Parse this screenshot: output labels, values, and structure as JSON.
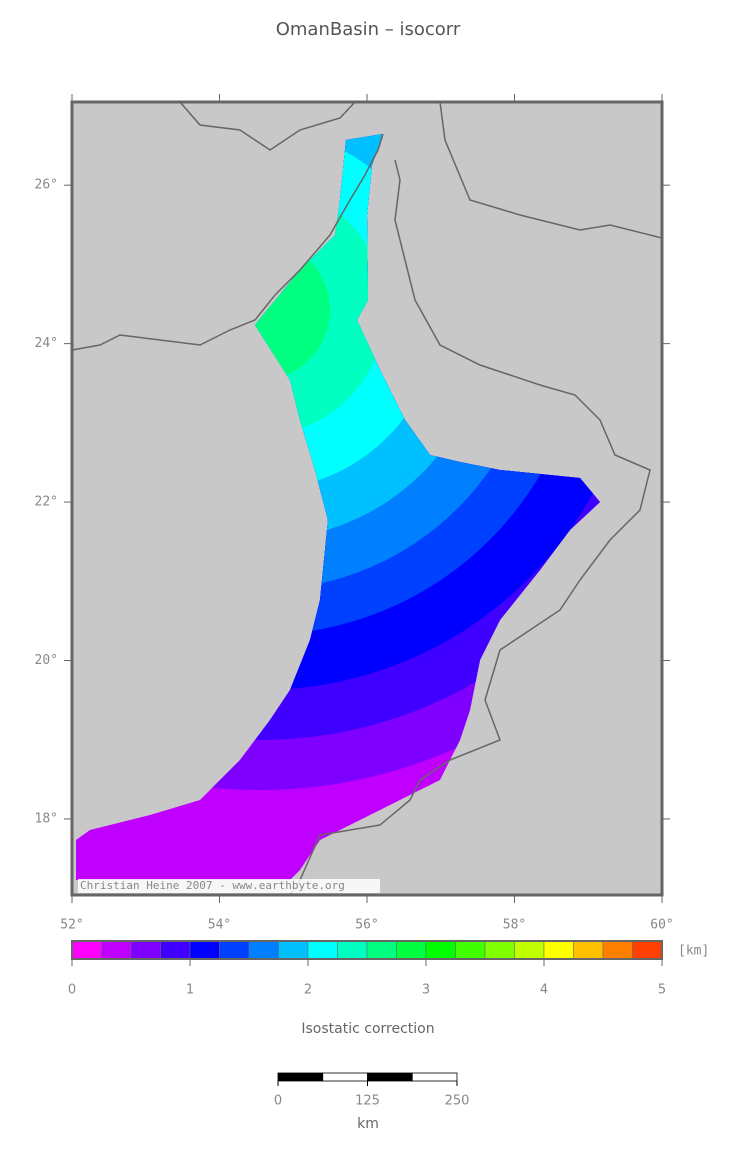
{
  "title": "OmanBasin – isocorr",
  "map": {
    "lonlim": [
      52,
      60
    ],
    "latlim": [
      17.04,
      27.05
    ],
    "lonticks": [
      {
        "value": 52,
        "label": "52°"
      },
      {
        "value": 54,
        "label": "54°"
      },
      {
        "value": 56,
        "label": "56°"
      },
      {
        "value": 58,
        "label": "58°"
      },
      {
        "value": 60,
        "label": "60°"
      }
    ],
    "latticks": [
      {
        "value": 18,
        "label": "18°"
      },
      {
        "value": 20,
        "label": "20°"
      },
      {
        "value": 22,
        "label": "22°"
      },
      {
        "value": 24,
        "label": "24°"
      },
      {
        "value": 26,
        "label": "26°"
      }
    ],
    "credit": "Christian Heine 2007 - www.earthbyte.org"
  },
  "colorbar": {
    "range": [
      0,
      5
    ],
    "ticks": [
      0,
      1,
      2,
      3,
      4,
      5
    ],
    "unit": "[km]",
    "label": "Isostatic correction",
    "colors": [
      "#ff00ff",
      "#c000ff",
      "#8000ff",
      "#4000ff",
      "#0000ff",
      "#0040ff",
      "#0080ff",
      "#00c0ff",
      "#00ffff",
      "#00ffc0",
      "#00ff80",
      "#00ff40",
      "#00ff00",
      "#40ff00",
      "#80ff00",
      "#c0ff00",
      "#ffff00",
      "#ffc000",
      "#ff8000",
      "#ff4000"
    ]
  },
  "scalebar": {
    "range": [
      0,
      250
    ],
    "ticks": [
      0,
      125,
      250
    ],
    "unit": "km"
  }
}
